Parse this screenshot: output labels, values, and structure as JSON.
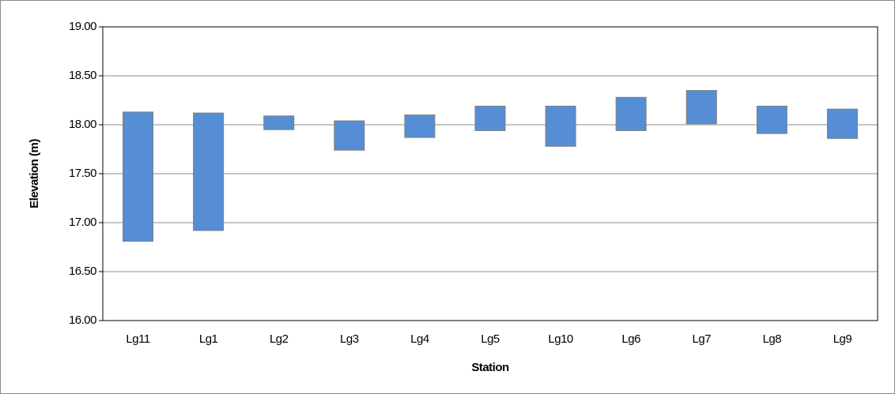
{
  "chart_data": {
    "type": "floating-bar",
    "x_label": "Station",
    "y_label": "Elevation (m)",
    "categories": [
      "Lg11",
      "Lg1",
      "Lg2",
      "Lg3",
      "Lg4",
      "Lg5",
      "Lg10",
      "Lg6",
      "Lg7",
      "Lg8",
      "Lg9"
    ],
    "low": [
      16.81,
      16.92,
      17.95,
      17.74,
      17.87,
      17.94,
      17.78,
      17.94,
      18.01,
      17.91,
      17.86
    ],
    "high": [
      18.13,
      18.12,
      18.09,
      18.04,
      18.1,
      18.19,
      18.19,
      18.28,
      18.35,
      18.19,
      18.16
    ],
    "color": "#558ed5",
    "ylim": [
      16,
      19
    ],
    "yticks": [
      {
        "value": 16,
        "label": "16.00"
      },
      {
        "value": 16.5,
        "label": "16.50"
      },
      {
        "value": 17,
        "label": "17.00"
      },
      {
        "value": 17.5,
        "label": "17.50"
      },
      {
        "value": 18,
        "label": "18.00"
      },
      {
        "value": 18.5,
        "label": "18.50"
      },
      {
        "value": 19,
        "label": "19.00"
      }
    ],
    "grid": true
  }
}
